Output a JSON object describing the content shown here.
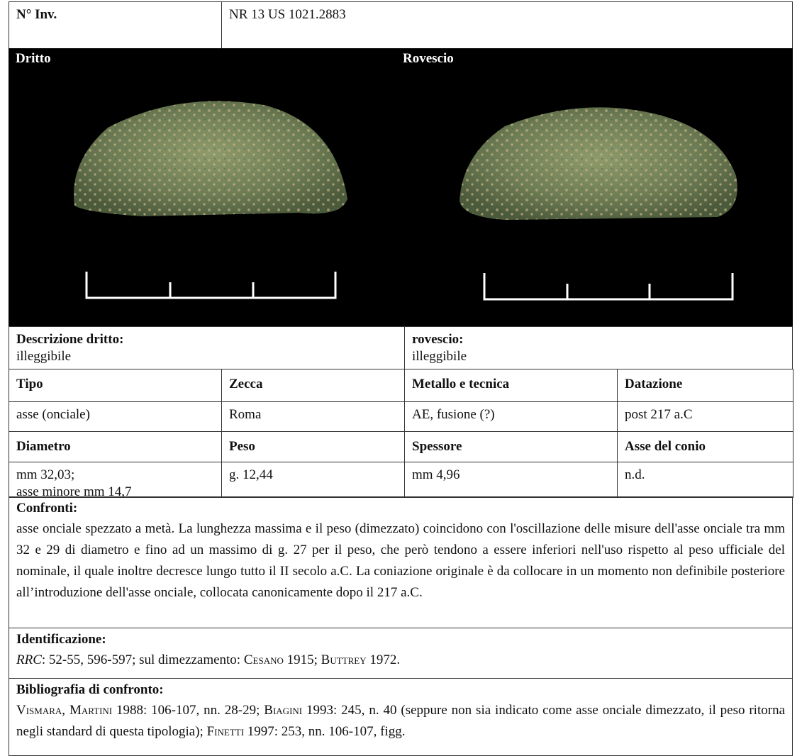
{
  "header": {
    "inv_label": "N° Inv.",
    "inv_value": "NR 13 US 1021.2883"
  },
  "images": {
    "obverse_label": "Dritto",
    "reverse_label": "Rovescio"
  },
  "description": {
    "obverse_label": "Descrizione dritto:",
    "obverse": "illeggibile",
    "reverse_label": "rovescio:",
    "reverse": "illeggibile"
  },
  "table": {
    "rows": [
      [
        "Tipo",
        "Zecca",
        "Metallo e tecnica",
        "Datazione"
      ],
      [
        "asse (onciale)",
        "Roma",
        "AE, fusione (?)",
        "post 217 a.C"
      ],
      [
        "Diametro",
        "Peso",
        "Spessore",
        "Asse del conio"
      ],
      [
        "mm 32,03;\nasse minore mm 14,7",
        "g. 12,44",
        "mm 4,96",
        "n.d."
      ]
    ]
  },
  "confronti": {
    "title": "Confronti:",
    "text": "asse onciale spezzato a metà. La lunghezza massima e il peso (dimezzato) coincidono con l'oscillazione delle misure dell'asse onciale tra mm 32 e 29 di diametro e fino ad un massimo di g. 27 per il peso, che però tendono a essere inferiori nell'uso rispetto al peso ufficiale del nominale, il quale inoltre decresce lungo tutto il II secolo a.C. La coniazione originale è da collocare in un momento non definibile posteriore all’introduzione dell'asse onciale, collocata canonicamente dopo il 217 a.C."
  },
  "identificazione": {
    "title": "Identificazione:",
    "segments": [
      {
        "text": "RRC",
        "style": "italic"
      },
      {
        "text": ": 52-55, 596-597;  sul dimezzamento: "
      },
      {
        "text": "Cesano",
        "style": "small-caps"
      },
      {
        "text": " 1915; "
      },
      {
        "text": "Buttrey",
        "style": "small-caps"
      },
      {
        "text": " 1972."
      }
    ]
  },
  "bibliografia": {
    "title": "Bibliografia di confronto:",
    "segments": [
      {
        "text": "Vismara",
        "style": "small-caps"
      },
      {
        "text": ", "
      },
      {
        "text": "Martini",
        "style": "small-caps"
      },
      {
        "text": " 1988: 106-107, nn. 28-29; "
      },
      {
        "text": "Biagini",
        "style": "small-caps"
      },
      {
        "text": " 1993: 245, n. 40 (seppure non sia indicato come asse onciale dimezzato, il peso ritorna negli standard di questa tipologia); "
      },
      {
        "text": "Finetti",
        "style": "small-caps"
      },
      {
        "text": " 1997: 253, nn. 106-107, figg."
      }
    ]
  }
}
